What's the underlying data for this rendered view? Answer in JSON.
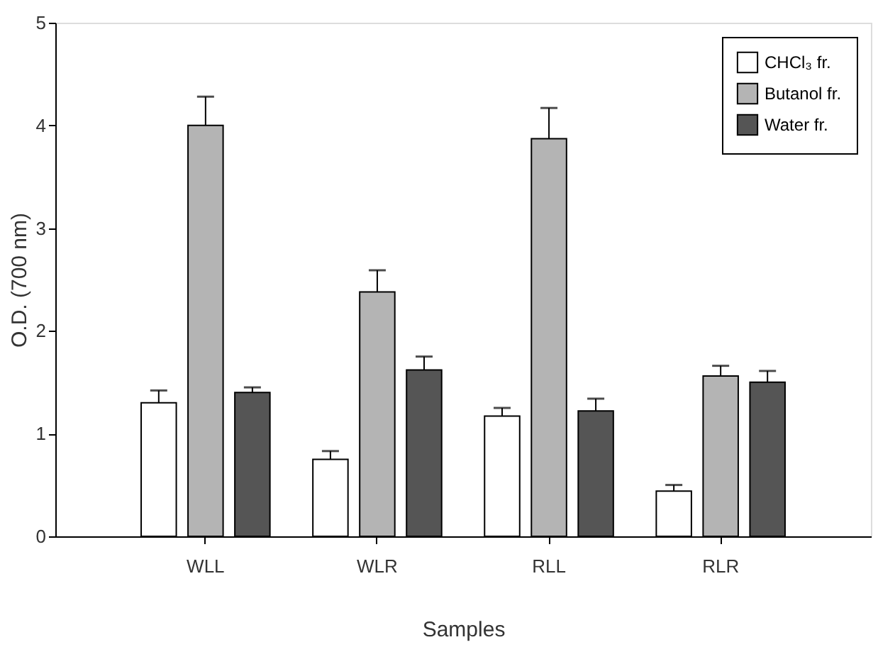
{
  "chart_data": {
    "type": "bar",
    "xlabel": "Samples",
    "ylabel": "O.D. (700 nm)",
    "categories": [
      "WLL",
      "WLR",
      "RLL",
      "RLR"
    ],
    "series": [
      {
        "name": "CHCl₃ fr.",
        "color": "#ffffff",
        "values": [
          1.3,
          0.75,
          1.17,
          0.44
        ],
        "errors": [
          0.12,
          0.08,
          0.08,
          0.06
        ]
      },
      {
        "name": "Butanol fr.",
        "color": "#b4b4b4",
        "values": [
          4.0,
          2.38,
          3.87,
          1.56
        ],
        "errors": [
          0.28,
          0.21,
          0.3,
          0.1
        ]
      },
      {
        "name": "Water fr.",
        "color": "#555555",
        "values": [
          1.4,
          1.62,
          1.22,
          1.5
        ],
        "errors": [
          0.05,
          0.13,
          0.12,
          0.11
        ]
      }
    ],
    "ylim": [
      0,
      5
    ],
    "yticks": [
      0,
      1,
      2,
      3,
      4,
      5
    ],
    "grid": false,
    "legend": "top right"
  }
}
